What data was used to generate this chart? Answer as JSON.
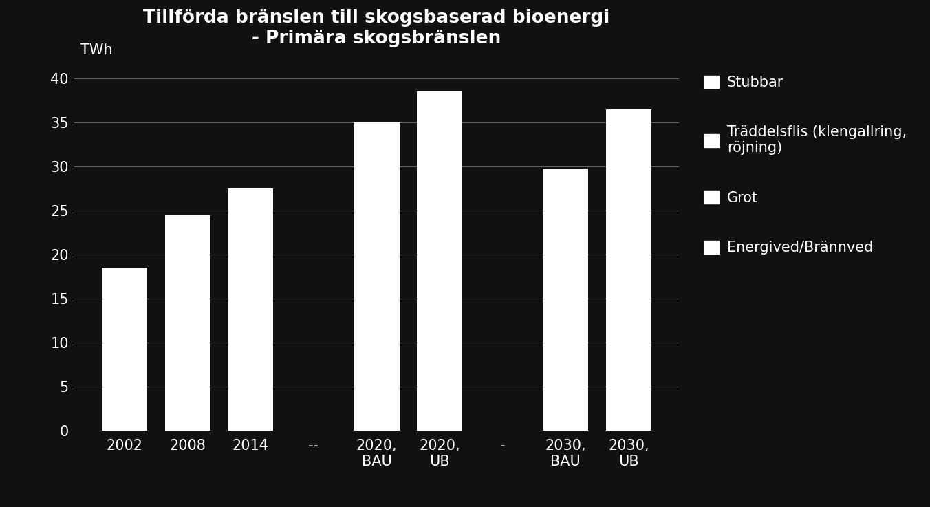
{
  "title": "Tillförda bränslen till skogsbaserad bioenergi\n- Primära skogsbränslen",
  "ylabel": "TWh",
  "background_color": "#111111",
  "bar_color": "#ffffff",
  "text_color": "#ffffff",
  "grid_color": "#666666",
  "categories": [
    "2002",
    "2008",
    "2014",
    "--",
    "2020,\nBAU",
    "2020,\nUB",
    "-",
    "2030,\nBAU",
    "2030,\nUB"
  ],
  "values": [
    18.5,
    24.5,
    27.5,
    0,
    35.0,
    38.5,
    0,
    29.8,
    36.5
  ],
  "ylim": [
    0,
    42
  ],
  "yticks": [
    0,
    5,
    10,
    15,
    20,
    25,
    30,
    35,
    40
  ],
  "legend_labels": [
    "Stubbar",
    "Träddelsflis (klengallring,\nröjning)",
    "Grot",
    "Energived/Brännved"
  ],
  "title_fontsize": 19,
  "tick_fontsize": 15,
  "legend_fontsize": 15,
  "bar_width": 0.72
}
